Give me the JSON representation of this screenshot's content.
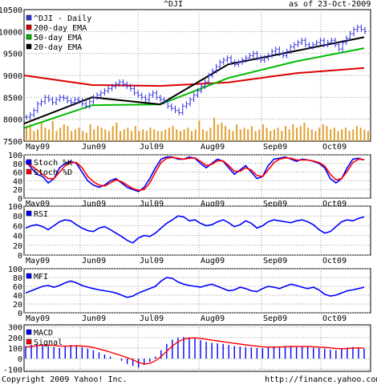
{
  "header": {
    "symbol": "^DJI",
    "as_of": "as of 23-Oct-2009"
  },
  "footer": {
    "copyright": "Copyright 2009 Yahoo! Inc.",
    "url": "http://finance.yahoo.com/"
  },
  "colors": {
    "price_bars": "#3333dd",
    "ema_200": "#dd0000",
    "ema_50": "#00bb00",
    "ema_20": "#000000",
    "volume": "#e0a030",
    "stoch_k": "#0000ff",
    "stoch_d": "#ff0000",
    "rsi": "#0000ff",
    "mfi": "#0000ff",
    "macd": "#0000ff",
    "signal": "#ff0000",
    "grid": "#999999"
  },
  "chart_data": [
    {
      "type": "line",
      "panel": "price",
      "x_labels": [
        "May09",
        "Jun09",
        "Jul09",
        "Aug09",
        "Sep09",
        "Oct09"
      ],
      "y_ticks": [
        "10500",
        "10000",
        "9500",
        "9000",
        "8500",
        "8000",
        "7500"
      ],
      "ylim": [
        7500,
        10500
      ],
      "grid": true,
      "legend": [
        "^DJI - Daily",
        "200-day EMA",
        "50-day EMA",
        "20-day EMA"
      ],
      "series": [
        {
          "name": "^DJI - Daily",
          "kind": "ohlc",
          "close": [
            8050,
            8100,
            8200,
            8350,
            8400,
            8500,
            8450,
            8380,
            8450,
            8500,
            8480,
            8420,
            8380,
            8450,
            8420,
            8350,
            8300,
            8400,
            8500,
            8550,
            8600,
            8650,
            8700,
            8750,
            8800,
            8850,
            8800,
            8750,
            8700,
            8600,
            8550,
            8500,
            8450,
            8550,
            8600,
            8500,
            8450,
            8400,
            8300,
            8250,
            8200,
            8150,
            8300,
            8350,
            8450,
            8550,
            8650,
            8750,
            8850,
            9000,
            9100,
            9200,
            9300,
            9350,
            9400,
            9300,
            9250,
            9300,
            9350,
            9400,
            9450,
            9500,
            9400,
            9350,
            9400,
            9450,
            9550,
            9600,
            9500,
            9450,
            9550,
            9650,
            9700,
            9750,
            9800,
            9700,
            9650,
            9700,
            9750,
            9800,
            9700,
            9750,
            9800,
            9700,
            9600,
            9750,
            9850,
            9950,
            10050,
            10100,
            10050,
            10000
          ]
        },
        {
          "name": "200-day EMA",
          "values": [
            9000,
            8780,
            8760,
            8840,
            9050,
            9170
          ]
        },
        {
          "name": "50-day EMA",
          "values": [
            7800,
            8320,
            8340,
            8940,
            9320,
            9620
          ]
        },
        {
          "name": "20-day EMA",
          "values": [
            7900,
            8500,
            8340,
            9250,
            9560,
            9870
          ]
        }
      ]
    },
    {
      "type": "bar",
      "panel": "volume",
      "series": [
        {
          "name": "Volume",
          "relative_values": [
            0.45,
            0.5,
            0.3,
            0.35,
            0.55,
            0.4,
            0.35,
            0.6,
            0.3,
            0.4,
            0.5,
            0.45,
            0.3,
            0.35,
            0.4,
            0.3,
            0.25,
            0.5,
            0.35,
            0.45,
            0.4,
            0.35,
            0.3,
            0.45,
            0.55,
            0.3,
            0.35,
            0.4,
            0.3,
            0.45,
            0.3,
            0.35,
            0.3,
            0.4,
            0.35,
            0.3,
            0.3,
            0.35,
            0.4,
            0.45,
            0.35,
            0.3,
            0.35,
            0.4,
            0.3,
            0.35,
            0.6,
            0.35,
            0.3,
            0.4,
            0.7,
            0.5,
            0.55,
            0.45,
            0.35,
            0.3,
            0.5,
            0.35,
            0.4,
            0.35,
            0.45,
            0.3,
            0.35,
            0.5,
            0.4,
            0.3,
            0.35,
            0.4,
            0.3,
            0.45,
            0.35,
            0.5,
            0.4,
            0.45,
            0.55,
            0.4,
            0.35,
            0.3,
            0.4,
            0.5,
            0.45,
            0.35,
            0.4,
            0.3,
            0.35,
            0.4,
            0.3,
            0.35,
            0.45,
            0.4,
            0.35,
            0.3
          ]
        }
      ]
    },
    {
      "type": "line",
      "panel": "stochastic",
      "x_labels": [
        "May09",
        "Jun09",
        "Jul09",
        "Aug09",
        "Sep09",
        "Oct09"
      ],
      "y_ticks": [
        "100",
        "80",
        "60",
        "40",
        "20",
        "0"
      ],
      "ylim": [
        0,
        100
      ],
      "grid": true,
      "legend": [
        "Stoch %K",
        "Stoch %D"
      ],
      "series": [
        {
          "name": "Stoch %K",
          "values": [
            85,
            70,
            55,
            50,
            35,
            45,
            70,
            80,
            85,
            80,
            60,
            40,
            30,
            25,
            30,
            40,
            45,
            35,
            25,
            20,
            15,
            25,
            45,
            70,
            90,
            95,
            95,
            90,
            90,
            95,
            92,
            80,
            70,
            80,
            90,
            85,
            70,
            55,
            65,
            75,
            60,
            45,
            50,
            75,
            90,
            92,
            95,
            90,
            85,
            90,
            88,
            85,
            80,
            70,
            45,
            35,
            45,
            70,
            90,
            92,
            88
          ]
        },
        {
          "name": "Stoch %D",
          "values": [
            80,
            75,
            65,
            55,
            45,
            45,
            60,
            75,
            82,
            82,
            70,
            50,
            38,
            30,
            28,
            35,
            42,
            38,
            30,
            22,
            18,
            20,
            35,
            60,
            82,
            92,
            94,
            92,
            90,
            92,
            93,
            85,
            75,
            78,
            86,
            86,
            75,
            62,
            62,
            70,
            65,
            52,
            50,
            65,
            82,
            90,
            93,
            92,
            88,
            88,
            88,
            86,
            82,
            74,
            55,
            42,
            45,
            62,
            82,
            90,
            89
          ]
        }
      ]
    },
    {
      "type": "line",
      "panel": "rsi",
      "x_labels": [
        "May09",
        "Jun09",
        "Jul09",
        "Aug09",
        "Sep09",
        "Oct09"
      ],
      "y_ticks": [
        "100",
        "80",
        "60",
        "40",
        "20",
        "0"
      ],
      "ylim": [
        0,
        100
      ],
      "grid": true,
      "legend": [
        "RSI"
      ],
      "series": [
        {
          "name": "RSI",
          "values": [
            55,
            60,
            62,
            58,
            52,
            60,
            68,
            72,
            70,
            62,
            55,
            50,
            48,
            55,
            58,
            52,
            45,
            38,
            30,
            25,
            35,
            40,
            38,
            45,
            55,
            65,
            72,
            80,
            78,
            70,
            72,
            65,
            60,
            62,
            68,
            72,
            66,
            58,
            62,
            70,
            65,
            55,
            60,
            68,
            72,
            70,
            68,
            66,
            70,
            72,
            68,
            62,
            52,
            45,
            48,
            58,
            68,
            72,
            70,
            75,
            78
          ]
        }
      ]
    },
    {
      "type": "line",
      "panel": "mfi",
      "x_labels": [
        "May09",
        "Jun09",
        "Jul09",
        "Aug09",
        "Sep09",
        "Oct09"
      ],
      "y_ticks": [
        "100",
        "80",
        "60",
        "40",
        "20",
        "0"
      ],
      "ylim": [
        0,
        100
      ],
      "grid": true,
      "legend": [
        "MFI"
      ],
      "series": [
        {
          "name": "MFI",
          "values": [
            45,
            50,
            55,
            60,
            62,
            58,
            62,
            68,
            72,
            68,
            62,
            58,
            55,
            52,
            50,
            48,
            45,
            40,
            35,
            38,
            45,
            50,
            55,
            60,
            72,
            80,
            78,
            70,
            65,
            62,
            60,
            58,
            62,
            65,
            60,
            55,
            50,
            52,
            58,
            55,
            50,
            48,
            55,
            60,
            58,
            55,
            60,
            65,
            62,
            58,
            55,
            58,
            52,
            42,
            38,
            40,
            45,
            50,
            52,
            55,
            58
          ]
        }
      ]
    },
    {
      "type": "bar",
      "panel": "macd",
      "x_labels": [
        "May09",
        "Jun09",
        "Jul09",
        "Aug09",
        "Sep09",
        "Oct09"
      ],
      "y_ticks": [
        "300",
        "200",
        "100",
        "0",
        "-100"
      ],
      "ylim": [
        -120,
        320
      ],
      "grid": true,
      "legend": [
        "MACD",
        "Signal"
      ],
      "series": [
        {
          "name": "MACD",
          "values": [
            120,
            130,
            140,
            135,
            120,
            110,
            100,
            120,
            130,
            125,
            110,
            95,
            80,
            60,
            40,
            20,
            0,
            -20,
            -50,
            -70,
            -85,
            -60,
            -30,
            20,
            80,
            140,
            180,
            200,
            205,
            200,
            190,
            175,
            160,
            150,
            145,
            140,
            130,
            120,
            115,
            110,
            105,
            100,
            100,
            105,
            110,
            115,
            120,
            120,
            118,
            115,
            110,
            105,
            100,
            95,
            85,
            80,
            90,
            105,
            110,
            105,
            95
          ]
        },
        {
          "name": "Signal",
          "values": [
            110,
            115,
            122,
            128,
            128,
            125,
            120,
            118,
            120,
            122,
            120,
            115,
            105,
            92,
            78,
            62,
            45,
            28,
            10,
            -10,
            -35,
            -50,
            -45,
            -20,
            20,
            70,
            120,
            160,
            185,
            195,
            196,
            192,
            184,
            175,
            168,
            160,
            152,
            145,
            138,
            130,
            124,
            118,
            113,
            110,
            110,
            111,
            113,
            115,
            116,
            116,
            115,
            113,
            110,
            107,
            102,
            96,
            94,
            96,
            100,
            102,
            101
          ]
        }
      ]
    }
  ]
}
